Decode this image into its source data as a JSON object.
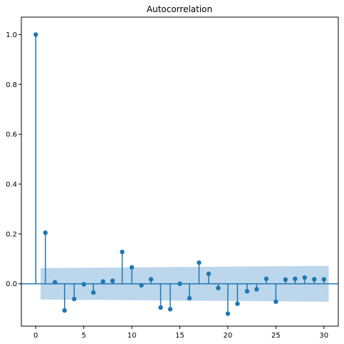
{
  "chart_data": {
    "type": "stem",
    "title": "Autocorrelation",
    "xlabel": "",
    "ylabel": "",
    "xlim": [
      -1.5,
      31.5
    ],
    "ylim": [
      -0.17,
      1.07
    ],
    "xticks": [
      0,
      5,
      10,
      15,
      20,
      25,
      30
    ],
    "xtick_labels": [
      "0",
      "5",
      "10",
      "15",
      "20",
      "25",
      "30"
    ],
    "yticks": [
      0.0,
      0.2,
      0.4,
      0.6,
      0.8,
      1.0
    ],
    "ytick_labels": [
      "0.0",
      "0.2",
      "0.4",
      "0.6",
      "0.8",
      "1.0"
    ],
    "grid": false,
    "series": [
      {
        "x": [
          0,
          1,
          2,
          3,
          4,
          5,
          6,
          7,
          8,
          9,
          10,
          11,
          12,
          13,
          14,
          15,
          16,
          17,
          18,
          19,
          20,
          21,
          22,
          23,
          24,
          25,
          26,
          27,
          28,
          29,
          30
        ],
        "values": [
          1.0,
          0.205,
          0.006,
          -0.107,
          -0.061,
          -0.002,
          -0.035,
          0.009,
          0.012,
          0.128,
          0.066,
          -0.006,
          0.018,
          -0.095,
          -0.102,
          0.0,
          -0.058,
          0.085,
          0.04,
          -0.017,
          -0.12,
          -0.08,
          -0.03,
          -0.022,
          0.02,
          -0.072,
          0.017,
          0.02,
          0.025,
          0.018,
          0.018
        ]
      }
    ],
    "confidence_band": {
      "x": [
        0.5,
        30.5
      ],
      "upper": [
        0.063,
        0.072
      ],
      "lower": [
        -0.063,
        -0.072
      ]
    },
    "colors": {
      "markers": "#1f77b4",
      "band": "#a6c8e6",
      "zero_line": "#1f77b4"
    }
  }
}
